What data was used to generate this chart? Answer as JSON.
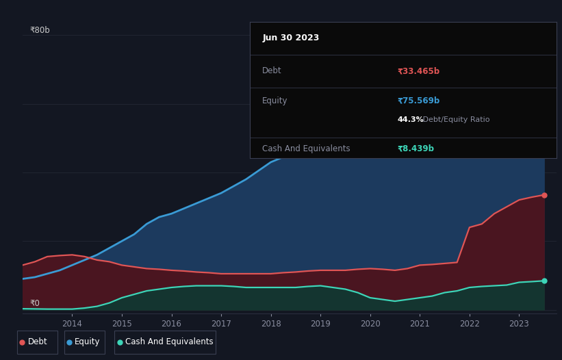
{
  "background_color": "#131722",
  "plot_bg_color": "#131722",
  "grid_color": "#252a36",
  "title_box": {
    "date": "Jun 30 2023",
    "debt_label": "Debt",
    "debt_value": "₹33.465b",
    "equity_label": "Equity",
    "equity_value": "₹75.569b",
    "ratio_pct": "44.3%",
    "ratio_text": " Debt/Equity Ratio",
    "cash_label": "Cash And Equivalents",
    "cash_value": "₹8.439b"
  },
  "years": [
    2013.0,
    2013.25,
    2013.5,
    2013.75,
    2014.0,
    2014.25,
    2014.5,
    2014.75,
    2015.0,
    2015.25,
    2015.5,
    2015.75,
    2016.0,
    2016.25,
    2016.5,
    2016.75,
    2017.0,
    2017.25,
    2017.5,
    2017.75,
    2018.0,
    2018.25,
    2018.5,
    2018.75,
    2019.0,
    2019.25,
    2019.5,
    2019.75,
    2020.0,
    2020.25,
    2020.5,
    2020.75,
    2021.0,
    2021.25,
    2021.5,
    2021.75,
    2022.0,
    2022.25,
    2022.5,
    2022.75,
    2023.0,
    2023.25,
    2023.5
  ],
  "equity": [
    9.0,
    9.5,
    10.5,
    11.5,
    13.0,
    14.5,
    16.0,
    18.0,
    20.0,
    22.0,
    25.0,
    27.0,
    28.0,
    29.5,
    31.0,
    32.5,
    34.0,
    36.0,
    38.0,
    40.5,
    43.0,
    44.5,
    46.0,
    46.5,
    47.0,
    47.5,
    48.0,
    49.0,
    50.0,
    51.0,
    53.0,
    54.5,
    56.0,
    59.0,
    62.0,
    63.5,
    65.0,
    67.0,
    70.0,
    72.5,
    75.0,
    75.3,
    75.569
  ],
  "debt": [
    13.0,
    14.0,
    15.5,
    15.8,
    16.0,
    15.5,
    14.5,
    14.0,
    13.0,
    12.5,
    12.0,
    11.8,
    11.5,
    11.3,
    11.0,
    10.8,
    10.5,
    10.5,
    10.5,
    10.5,
    10.5,
    10.8,
    11.0,
    11.3,
    11.5,
    11.5,
    11.5,
    11.8,
    12.0,
    11.8,
    11.5,
    12.0,
    13.0,
    13.2,
    13.5,
    13.8,
    24.0,
    25.0,
    28.0,
    30.0,
    32.0,
    32.8,
    33.465
  ],
  "cash": [
    0.3,
    0.25,
    0.2,
    0.2,
    0.2,
    0.5,
    1.0,
    2.0,
    3.5,
    4.5,
    5.5,
    6.0,
    6.5,
    6.8,
    7.0,
    7.0,
    7.0,
    6.8,
    6.5,
    6.5,
    6.5,
    6.5,
    6.5,
    6.8,
    7.0,
    6.5,
    6.0,
    5.0,
    3.5,
    3.0,
    2.5,
    3.0,
    3.5,
    4.0,
    5.0,
    5.5,
    6.5,
    6.8,
    7.0,
    7.2,
    8.0,
    8.2,
    8.439
  ],
  "equity_color": "#3a9bd5",
  "equity_fill": "#1c3a5e",
  "debt_color": "#e05555",
  "debt_fill": "#4a1520",
  "cash_color": "#3dd5b8",
  "cash_fill": "#143530",
  "ylabel_80": "₹80b",
  "ylabel_0": "₹0",
  "xticks": [
    2014,
    2015,
    2016,
    2017,
    2018,
    2019,
    2020,
    2021,
    2022,
    2023
  ],
  "xlim": [
    2013.0,
    2023.75
  ],
  "ylim": [
    -1,
    85
  ],
  "legend_labels": [
    "Debt",
    "Equity",
    "Cash And Equivalents"
  ],
  "legend_colors": [
    "#e05555",
    "#3a9bd5",
    "#3dd5b8"
  ]
}
